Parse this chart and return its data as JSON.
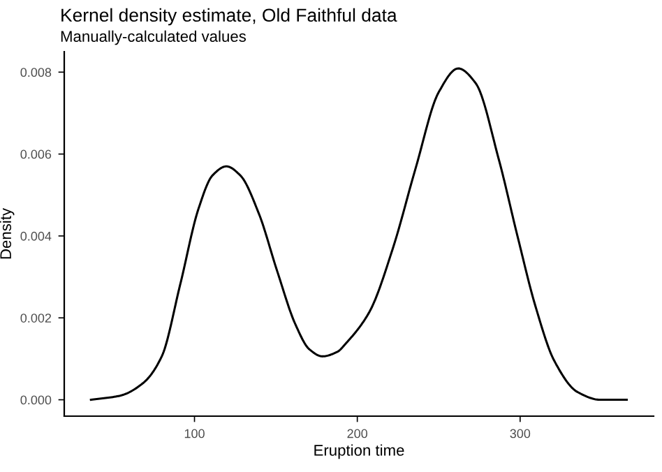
{
  "chart_data": {
    "type": "line",
    "title": "Kernel density estimate, Old Faithful data",
    "subtitle": "Manually-calculated values",
    "xlabel": "Eruption time",
    "ylabel": "Density",
    "x": [
      36.4,
      54.3,
      68.5,
      79.9,
      91.2,
      102.5,
      111.1,
      119.6,
      128.1,
      139.4,
      150.8,
      162.1,
      170.6,
      178.6,
      187.7,
      193.3,
      207.5,
      221.7,
      235.8,
      250,
      262,
      272.7,
      286.9,
      298.3,
      309.6,
      321,
      335.2,
      349.3,
      365.5
    ],
    "series": [
      {
        "color": "#000000",
        "values": [
          0.0,
          0.0001,
          0.00041,
          0.00106,
          0.00281,
          0.00467,
          0.00548,
          0.0057,
          0.00548,
          0.00456,
          0.00314,
          0.00183,
          0.00123,
          0.00106,
          0.00117,
          0.00139,
          0.00215,
          0.00368,
          0.00565,
          0.00751,
          0.00809,
          0.00773,
          0.00587,
          0.00401,
          0.00226,
          0.00095,
          0.00019,
          0.0,
          0.0
        ]
      }
    ],
    "xlim": [
      20,
      382
    ],
    "ylim": [
      -0.0004,
      0.0085
    ],
    "xticks": [
      100,
      200,
      300
    ],
    "yticks": [
      {
        "value": 0,
        "label": "0.000"
      },
      {
        "value": 0.002,
        "label": "0.002"
      },
      {
        "value": 0.004,
        "label": "0.004"
      },
      {
        "value": 0.006,
        "label": "0.006"
      },
      {
        "value": 0.008,
        "label": "0.008"
      }
    ],
    "grid": false,
    "line_style": "solid",
    "marker": "none"
  }
}
